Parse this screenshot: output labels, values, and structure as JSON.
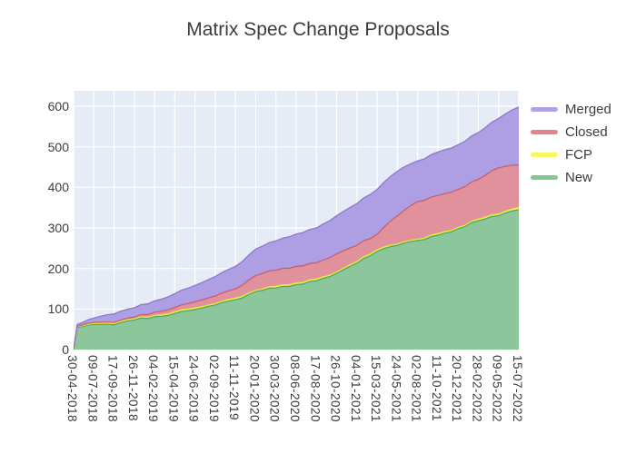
{
  "title": "Matrix Spec Change Proposals",
  "chart_data": {
    "type": "area",
    "stacked": true,
    "title": "Matrix Spec Change Proposals",
    "plot_bg": "#e5ecf6",
    "grid_color": "#ffffff",
    "grid": true,
    "legend_position": "right",
    "x_tick_labels": [
      "30-04-2018",
      "09-07-2018",
      "17-09-2018",
      "26-11-2018",
      "04-02-2019",
      "15-04-2019",
      "24-06-2019",
      "02-09-2019",
      "11-11-2019",
      "20-01-2020",
      "30-03-2020",
      "08-06-2020",
      "17-08-2020",
      "26-10-2020",
      "04-01-2021",
      "15-03-2021",
      "24-05-2021",
      "02-08-2021",
      "11-10-2021",
      "20-12-2021",
      "28-02-2022",
      "09-05-2022",
      "15-07-2022"
    ],
    "y_ticks": [
      0,
      100,
      200,
      300,
      400,
      500,
      600
    ],
    "ylim": [
      0,
      638
    ],
    "x": [
      0,
      0.18,
      1,
      2,
      3,
      4,
      5,
      6,
      7,
      8,
      9,
      10,
      11,
      12,
      13,
      14,
      15,
      16,
      17,
      18,
      19,
      20,
      21,
      22
    ],
    "series": [
      {
        "name": "New",
        "fill": "#8bc79b",
        "line": "#48a56d",
        "values": [
          0,
          55,
          62,
          61,
          73,
          81,
          89,
          99,
          110,
          123,
          143,
          152,
          160,
          170,
          188,
          213,
          242,
          257,
          269,
          282,
          298,
          318,
          330,
          345
        ]
      },
      {
        "name": "FCP",
        "fill": "#f9f96f",
        "line": "#e8e832",
        "values": [
          0,
          2,
          2,
          3,
          3,
          3,
          4,
          4,
          3,
          4,
          3,
          4,
          4,
          4,
          3,
          4,
          4,
          3,
          3,
          4,
          3,
          4,
          4,
          5
        ]
      },
      {
        "name": "Closed",
        "fill": "#e0919c",
        "line": "#c75f6e",
        "values": [
          0,
          1,
          3,
          3,
          4,
          8,
          11,
          15,
          19,
          23,
          37,
          40,
          41,
          40,
          45,
          40,
          38,
          70,
          93,
          94,
          94,
          98,
          114,
          105
        ]
      },
      {
        "name": "Merged",
        "fill": "#ae9ee3",
        "line": "#8e76d1",
        "values": [
          0,
          4,
          11,
          21,
          23,
          28,
          34,
          40,
          48,
          55,
          65,
          72,
          80,
          86,
          94,
          103,
          111,
          110,
          100,
          107,
          110,
          115,
          122,
          143
        ]
      }
    ],
    "legend": [
      {
        "label": "Merged",
        "color": "#b2a1e6"
      },
      {
        "label": "Closed",
        "color": "#e2828e"
      },
      {
        "label": "FCP",
        "color": "#f7f75f"
      },
      {
        "label": "New",
        "color": "#82c794"
      }
    ]
  }
}
